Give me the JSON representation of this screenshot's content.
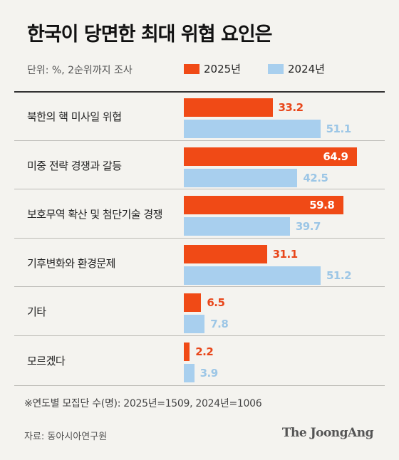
{
  "title": "한국이 당면한 최대 위협 요인은",
  "unit_note": "단위: %, 2순위까지 조사",
  "colors": {
    "series_2025": "#f04a16",
    "series_2024": "#a8cfee"
  },
  "chart_data": {
    "type": "bar",
    "orientation": "horizontal",
    "categories": [
      "북한의 핵 미사일 위협",
      "미중 전략 경쟁과 갈등",
      "보호무역 확산 및 첨단기술 경쟁",
      "기후변화와 환경문제",
      "기타",
      "모르겠다"
    ],
    "series": [
      {
        "name": "2025년",
        "values": [
          33.2,
          64.9,
          59.8,
          31.1,
          6.5,
          2.2
        ]
      },
      {
        "name": "2024년",
        "values": [
          51.1,
          42.5,
          39.7,
          51.2,
          7.8,
          3.9
        ]
      }
    ],
    "legend_position": "top-right",
    "grid": false
  },
  "footnote": "※연도별 모집단 수(명): 2025년=1509, 2024년=1006",
  "source": "자료: 동아시아연구원",
  "brand": "The JoongAng"
}
